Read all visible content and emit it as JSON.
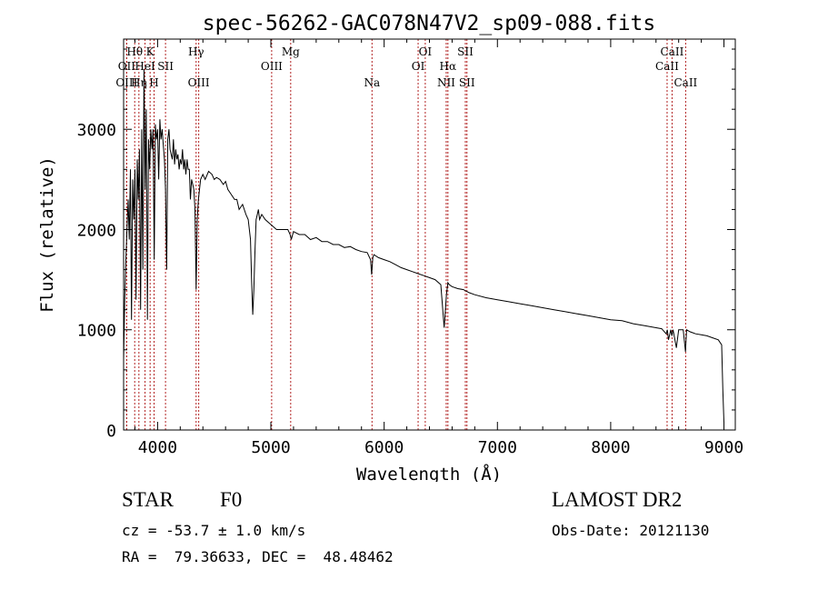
{
  "chart_data": {
    "type": "line",
    "title": "spec-56262-GAC078N47V2_sp09-088.fits",
    "xlabel": "Wavelength (Å)",
    "ylabel": "Flux (relative)",
    "xlim": [
      3700,
      9100
    ],
    "ylim": [
      0,
      3900
    ],
    "xticks": [
      4000,
      5000,
      6000,
      7000,
      8000,
      9000
    ],
    "yticks": [
      0,
      1000,
      2000,
      3000
    ],
    "grid": false,
    "line_color": "#000000",
    "marker_color": "#b22222",
    "series": [
      {
        "x": [
          3700,
          3710,
          3720,
          3730,
          3740,
          3750,
          3760,
          3770,
          3780,
          3790,
          3800,
          3810,
          3820,
          3830,
          3840,
          3850,
          3860,
          3870,
          3880,
          3890,
          3900,
          3910,
          3920,
          3930,
          3940,
          3950,
          3960,
          3970,
          3980,
          3990,
          4000,
          4010,
          4020,
          4030,
          4040,
          4050,
          4060,
          4070,
          4080,
          4090,
          4100,
          4110,
          4120,
          4130,
          4140,
          4150,
          4160,
          4170,
          4180,
          4190,
          4200,
          4210,
          4220,
          4230,
          4240,
          4250,
          4260,
          4270,
          4280,
          4290,
          4300,
          4320,
          4330,
          4340,
          4350,
          4360,
          4370,
          4380,
          4400,
          4420,
          4450,
          4480,
          4500,
          4520,
          4550,
          4580,
          4600,
          4620,
          4650,
          4680,
          4700,
          4720,
          4750,
          4780,
          4800,
          4820,
          4830,
          4840,
          4850,
          4860,
          4870,
          4880,
          4890,
          4900,
          4920,
          4950,
          5000,
          5050,
          5100,
          5150,
          5170,
          5180,
          5200,
          5250,
          5300,
          5350,
          5400,
          5450,
          5500,
          5550,
          5600,
          5650,
          5700,
          5750,
          5800,
          5850,
          5880,
          5890,
          5900,
          5910,
          5950,
          6000,
          6050,
          6100,
          6150,
          6200,
          6250,
          6300,
          6350,
          6400,
          6450,
          6500,
          6530,
          6550,
          6563,
          6575,
          6600,
          6650,
          6700,
          6750,
          6800,
          6900,
          7000,
          7100,
          7200,
          7300,
          7400,
          7500,
          7600,
          7700,
          7800,
          7900,
          8000,
          8100,
          8200,
          8300,
          8400,
          8450,
          8490,
          8500,
          8510,
          8530,
          8540,
          8550,
          8580,
          8600,
          8640,
          8660,
          8670,
          8700,
          8750,
          8800,
          8850,
          8900,
          8950,
          8980,
          8990,
          9000
        ],
        "y": [
          700,
          1300,
          1700,
          2000,
          2300,
          1900,
          2600,
          1100,
          2500,
          2100,
          2600,
          1300,
          2700,
          2300,
          2800,
          1200,
          3000,
          1600,
          3600,
          2400,
          3200,
          1100,
          2900,
          2600,
          3000,
          2800,
          3000,
          1700,
          3050,
          2900,
          3000,
          2500,
          3100,
          2900,
          3000,
          2850,
          2700,
          2400,
          1600,
          2900,
          3000,
          2800,
          2750,
          2700,
          2900,
          2650,
          2800,
          2700,
          2750,
          2600,
          2700,
          2650,
          2800,
          2600,
          2700,
          2550,
          2700,
          2600,
          2600,
          2300,
          2500,
          2400,
          2200,
          1400,
          2100,
          2300,
          2400,
          2500,
          2550,
          2500,
          2580,
          2550,
          2500,
          2520,
          2500,
          2450,
          2480,
          2400,
          2350,
          2300,
          2300,
          2200,
          2250,
          2150,
          2100,
          1900,
          1500,
          1150,
          1400,
          1800,
          2100,
          2150,
          2200,
          2100,
          2150,
          2100,
          2050,
          2000,
          2000,
          2000,
          1950,
          1900,
          1980,
          1950,
          1950,
          1900,
          1920,
          1880,
          1880,
          1850,
          1850,
          1820,
          1830,
          1800,
          1780,
          1770,
          1700,
          1550,
          1720,
          1750,
          1720,
          1700,
          1680,
          1650,
          1620,
          1600,
          1580,
          1560,
          1540,
          1520,
          1500,
          1450,
          1020,
          1350,
          1470,
          1450,
          1430,
          1410,
          1400,
          1370,
          1350,
          1320,
          1300,
          1280,
          1260,
          1240,
          1220,
          1200,
          1180,
          1160,
          1140,
          1120,
          1100,
          1090,
          1060,
          1040,
          1020,
          1010,
          960,
          1000,
          900,
          1000,
          940,
          1000,
          820,
          1000,
          1000,
          780,
          1000,
          980,
          960,
          950,
          940,
          920,
          900,
          850,
          400,
          80
        ]
      }
    ],
    "lines": [
      {
        "label": "Hθ",
        "x": 3798,
        "row": 0
      },
      {
        "label": "OII",
        "x": 3727,
        "row": 1
      },
      {
        "label": "OIII",
        "x": 3727,
        "row": 2
      },
      {
        "label": "K",
        "x": 3934,
        "row": 0
      },
      {
        "label": "HeI",
        "x": 3889,
        "row": 1
      },
      {
        "label": "Hη",
        "x": 3835,
        "row": 2
      },
      {
        "label": "SII",
        "x": 4070,
        "row": 1
      },
      {
        "label": "H",
        "x": 3969,
        "row": 2
      },
      {
        "label": "Hγ",
        "x": 4340,
        "row": 0
      },
      {
        "label": "OIII",
        "x": 4363,
        "row": 2
      },
      {
        "label": "Mg",
        "x": 5175,
        "row": 0
      },
      {
        "label": "OIII",
        "x": 5007,
        "row": 1
      },
      {
        "label": "Na",
        "x": 5893,
        "row": 2
      },
      {
        "label": "OI",
        "x": 6363,
        "row": 0
      },
      {
        "label": "OI",
        "x": 6300,
        "row": 1
      },
      {
        "label": "SII",
        "x": 6717,
        "row": 0
      },
      {
        "label": "Hα",
        "x": 6563,
        "row": 1
      },
      {
        "label": "NII",
        "x": 6548,
        "row": 2
      },
      {
        "label": "SII",
        "x": 6731,
        "row": 2
      },
      {
        "label": "CaII",
        "x": 8542,
        "row": 0
      },
      {
        "label": "CaII",
        "x": 8498,
        "row": 1
      },
      {
        "label": "CaII",
        "x": 8662,
        "row": 2
      }
    ]
  },
  "info": {
    "object_class": "STAR",
    "subclass": "F0",
    "survey": "LAMOST DR2",
    "redshift": "cz = -53.7 ± 1.0 km/s",
    "obs_date": "Obs-Date: 20121130",
    "coords": "RA =  79.36633, DEC =  48.48462"
  }
}
